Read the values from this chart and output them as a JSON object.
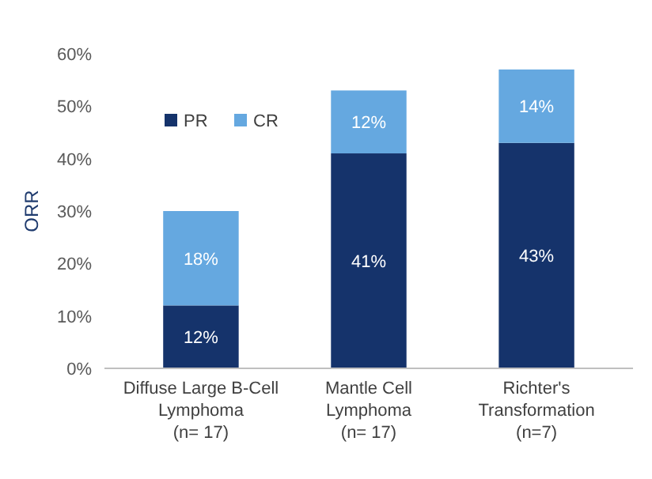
{
  "chart_data": {
    "type": "bar",
    "stacked": true,
    "ylabel": "ORR",
    "categories": [
      "Diffuse Large B-Cell\nLymphoma\n(n= 17)",
      "Mantle Cell\nLymphoma\n(n= 17)",
      "Richter's\nTransformation\n(n=7)"
    ],
    "series": [
      {
        "name": "PR",
        "color": "#15336b",
        "values": [
          12,
          41,
          43
        ],
        "value_labels": [
          "12%",
          "41%",
          "43%"
        ]
      },
      {
        "name": "CR",
        "color": "#65a8e0",
        "values": [
          18,
          12,
          14
        ],
        "value_labels": [
          "18%",
          "12%",
          "14%"
        ]
      }
    ],
    "ylim": [
      0,
      60
    ],
    "yticks": [
      {
        "value": 0,
        "label": "0%"
      },
      {
        "value": 10,
        "label": "10%"
      },
      {
        "value": 20,
        "label": "20%"
      },
      {
        "value": 30,
        "label": "30%"
      },
      {
        "value": 40,
        "label": "40%"
      },
      {
        "value": 50,
        "label": "50%"
      },
      {
        "value": 60,
        "label": "60%"
      }
    ],
    "grid": false,
    "legend": "top left"
  }
}
